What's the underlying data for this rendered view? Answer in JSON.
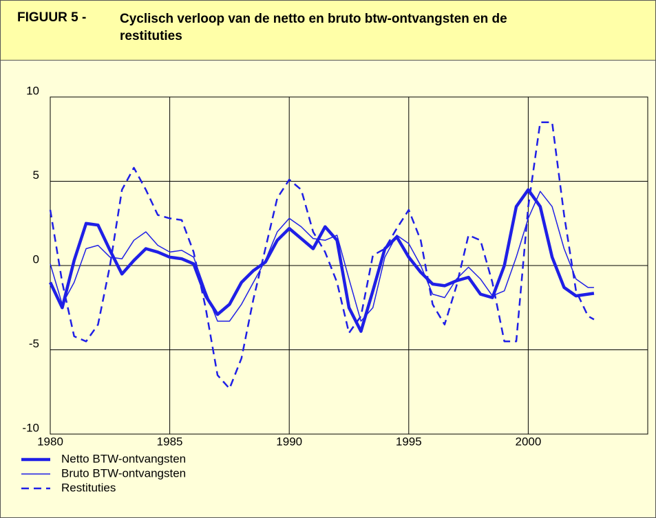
{
  "chart_data": {
    "type": "line",
    "label": "FIGUUR 5 -",
    "title": "Cyclisch verloop van de netto en bruto btw-ontvangsten en de resti­tuties",
    "x": [
      1980,
      1980.5,
      1981,
      1981.5,
      1982,
      1982.5,
      1983,
      1983.5,
      1984,
      1984.5,
      1985,
      1985.5,
      1986,
      1986.5,
      1987,
      1987.5,
      1988,
      1988.5,
      1989,
      1989.5,
      1990,
      1990.5,
      1991,
      1991.5,
      1992,
      1992.5,
      1993,
      1993.5,
      1994,
      1994.5,
      1995,
      1995.5,
      1996,
      1996.5,
      1997,
      1997.5,
      1998,
      1998.5,
      1999,
      1999.5,
      2000,
      2000.5,
      2001,
      2001.5,
      2002,
      2002.5,
      2002.75
    ],
    "series": [
      {
        "name": "Netto BTW-ontvangsten",
        "color": "#1f1fe6",
        "style": "thick",
        "values": [
          -1.0,
          -2.5,
          0.3,
          2.5,
          2.4,
          0.9,
          -0.5,
          0.3,
          1.0,
          0.8,
          0.5,
          0.4,
          0.1,
          -1.8,
          -2.9,
          -2.3,
          -1.0,
          -0.3,
          0.2,
          1.5,
          2.2,
          1.6,
          1.0,
          2.3,
          1.5,
          -2.5,
          -3.9,
          -1.5,
          1.0,
          1.7,
          0.5,
          -0.4,
          -1.1,
          -1.2,
          -0.9,
          -0.7,
          -1.7,
          -1.9,
          0.0,
          3.5,
          4.5,
          3.5,
          0.5,
          -1.3,
          -1.8,
          -1.7,
          -1.65
        ]
      },
      {
        "name": "Bruto BTW-ontvangsten",
        "color": "#1f1fe6",
        "style": "thin",
        "values": [
          0.1,
          -2.3,
          -1.0,
          1.0,
          1.2,
          0.5,
          0.4,
          1.5,
          2.0,
          1.2,
          0.8,
          0.9,
          0.5,
          -1.5,
          -3.3,
          -3.3,
          -2.3,
          -1.0,
          0.3,
          2.0,
          2.8,
          2.3,
          1.6,
          1.5,
          1.8,
          -0.8,
          -3.3,
          -2.5,
          0.5,
          1.8,
          1.3,
          0.0,
          -1.7,
          -1.9,
          -0.8,
          -0.1,
          -0.8,
          -1.8,
          -1.5,
          0.5,
          2.8,
          4.4,
          3.5,
          1.0,
          -0.8,
          -1.3,
          -1.3
        ]
      },
      {
        "name": "Restituties",
        "color": "#1f1fe6",
        "style": "dashed",
        "values": [
          3.3,
          -1.0,
          -4.2,
          -4.5,
          -3.5,
          0.0,
          4.5,
          5.8,
          4.5,
          3.0,
          2.8,
          2.7,
          0.8,
          -2.5,
          -6.5,
          -7.3,
          -5.5,
          -2.0,
          1.0,
          4.0,
          5.1,
          4.5,
          2.0,
          0.8,
          -1.0,
          -4.0,
          -3.0,
          0.6,
          1.0,
          2.2,
          3.3,
          1.5,
          -2.3,
          -3.5,
          -1.2,
          1.8,
          1.5,
          -1.0,
          -4.5,
          -4.5,
          3.5,
          8.5,
          8.5,
          3.0,
          -1.5,
          -3.0,
          -3.2
        ]
      }
    ],
    "xlim": [
      1980,
      2005
    ],
    "xticks": [
      1980,
      1985,
      1990,
      1995,
      2000
    ],
    "ylim": [
      -10,
      10
    ],
    "yticks": [
      -10,
      -5,
      0,
      5,
      10
    ],
    "grid": true,
    "legend": "bottom-left"
  }
}
